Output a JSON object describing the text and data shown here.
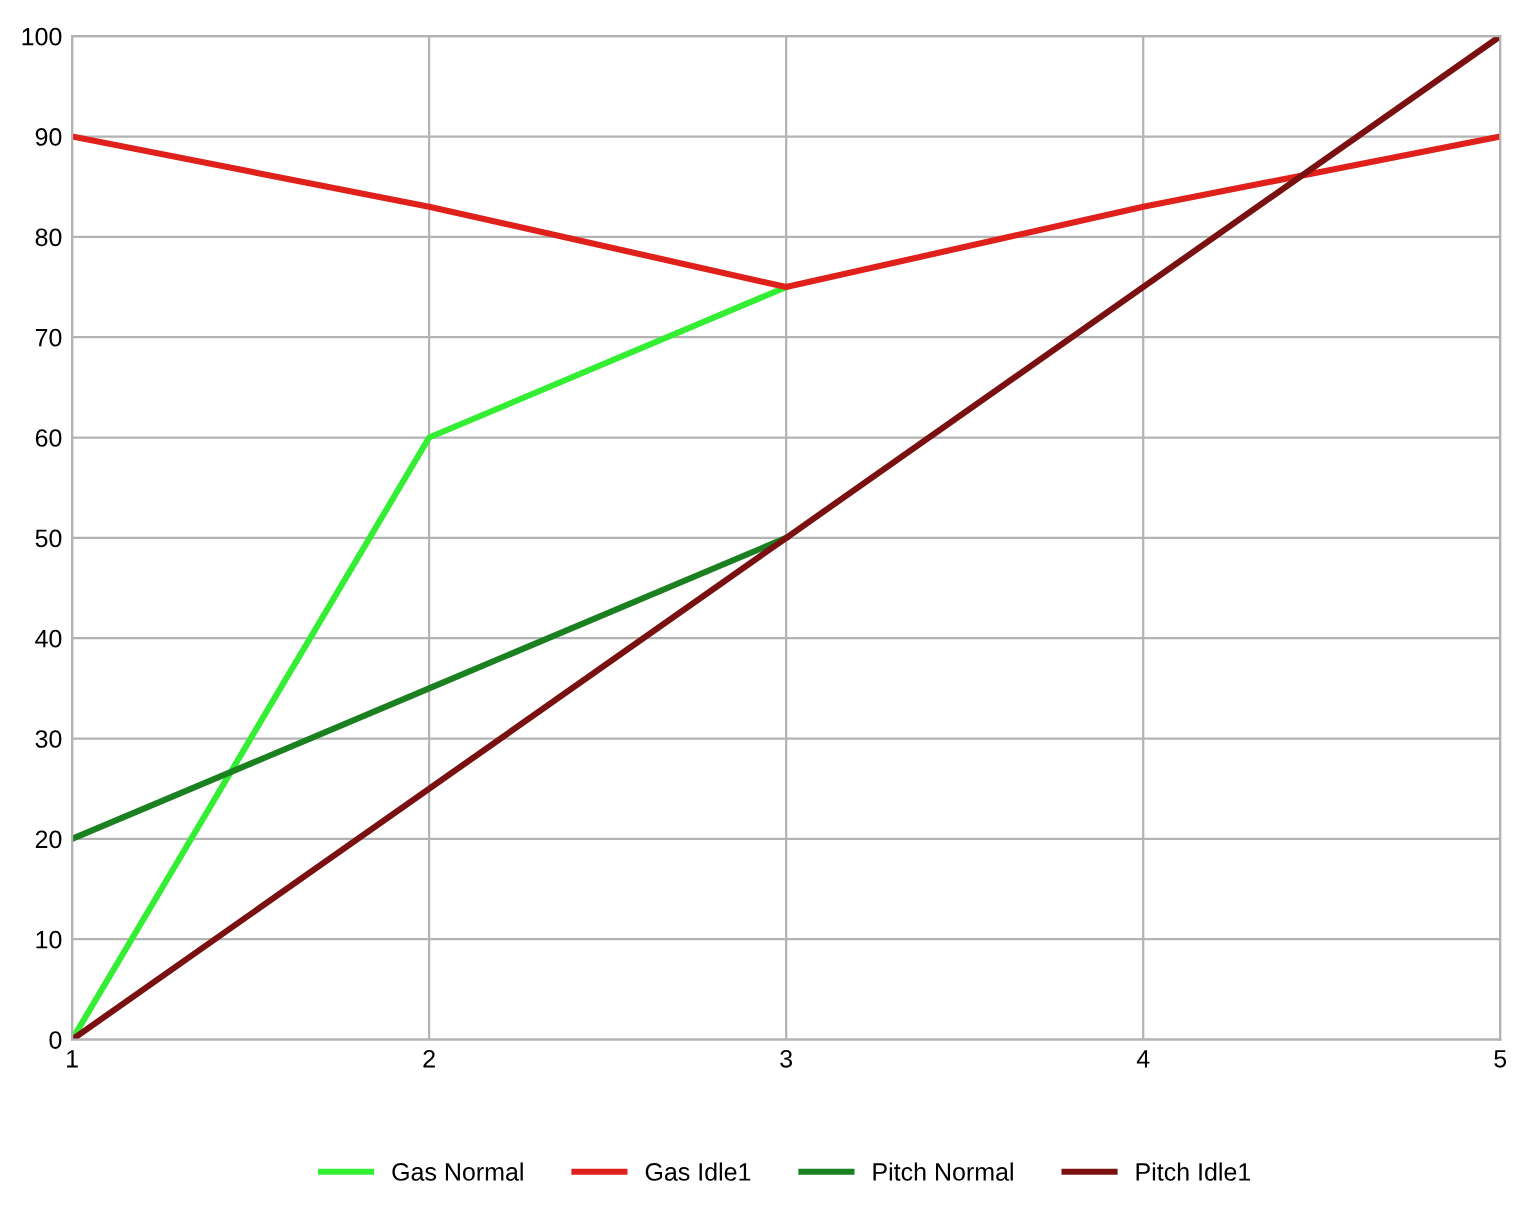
{
  "chart_data": {
    "type": "line",
    "x": [
      1,
      2,
      3,
      4,
      5
    ],
    "series": [
      {
        "name": "Gas Normal",
        "color": "#33ee33",
        "values": [
          0,
          60,
          75,
          null,
          null
        ]
      },
      {
        "name": "Gas Idle1",
        "color": "#e0201a",
        "values": [
          90,
          83,
          75,
          83,
          90
        ]
      },
      {
        "name": "Pitch Normal",
        "color": "#1a8020",
        "values": [
          20,
          35,
          50,
          null,
          null
        ]
      },
      {
        "name": "Pitch Idle1",
        "color": "#7a1010",
        "values": [
          0,
          25,
          50,
          75,
          100
        ]
      }
    ],
    "xlim": [
      1,
      5
    ],
    "xticks": [
      1,
      2,
      3,
      4,
      5
    ],
    "ylim": [
      0,
      100
    ],
    "yticks": [
      0,
      10,
      20,
      30,
      40,
      50,
      60,
      70,
      80,
      90,
      100
    ],
    "grid": true,
    "legend": "bottom",
    "marker": "none",
    "line_style": "solid"
  }
}
